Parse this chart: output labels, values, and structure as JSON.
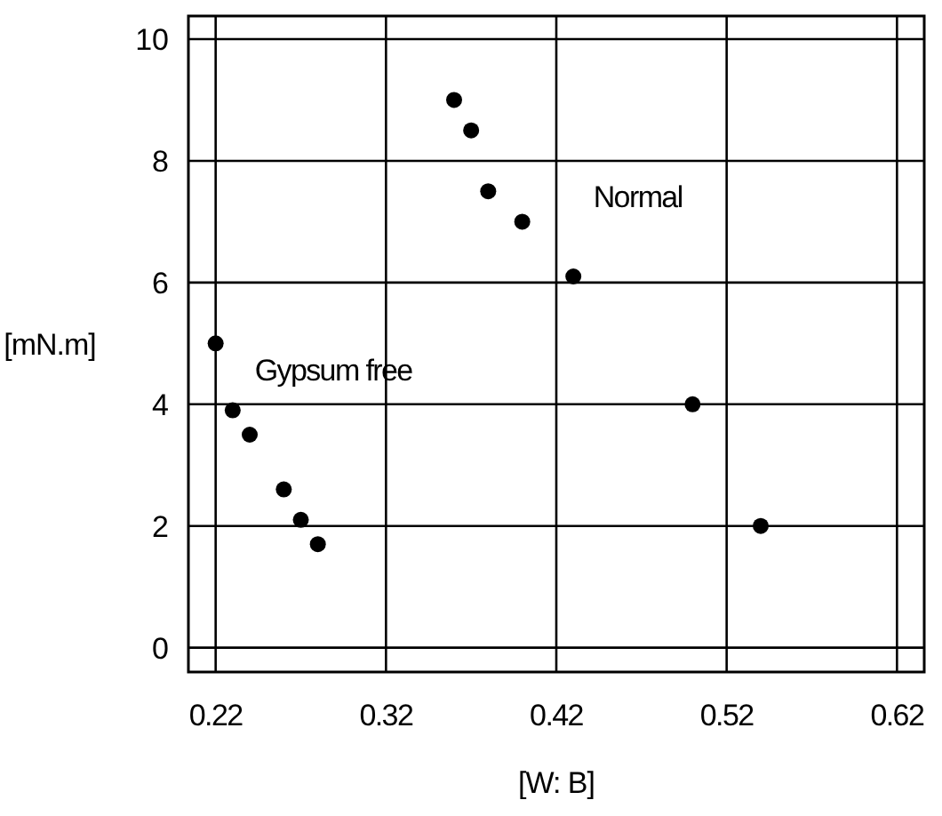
{
  "chart_data": {
    "type": "scatter",
    "xlabel": "[W: B]",
    "ylabel": "[mN.m]",
    "xlim": [
      0.204,
      0.636
    ],
    "ylim": [
      -0.4,
      10.38
    ],
    "xticks": [
      0.22,
      0.32,
      0.42,
      0.52,
      0.62
    ],
    "yticks": [
      0,
      2,
      4,
      6,
      8,
      10
    ],
    "grid": true,
    "marker": "circle",
    "series": [
      {
        "name": "Gypsum free",
        "color": "#000000",
        "x": [
          0.22,
          0.23,
          0.24,
          0.26,
          0.27,
          0.28
        ],
        "values": [
          5.0,
          3.9,
          3.5,
          2.6,
          2.1,
          1.7
        ]
      },
      {
        "name": "Normal",
        "color": "#000000",
        "x": [
          0.36,
          0.37,
          0.38,
          0.4,
          0.43,
          0.5,
          0.54
        ],
        "values": [
          9.0,
          8.5,
          7.5,
          7.0,
          6.1,
          4.0,
          2.0
        ]
      }
    ]
  }
}
